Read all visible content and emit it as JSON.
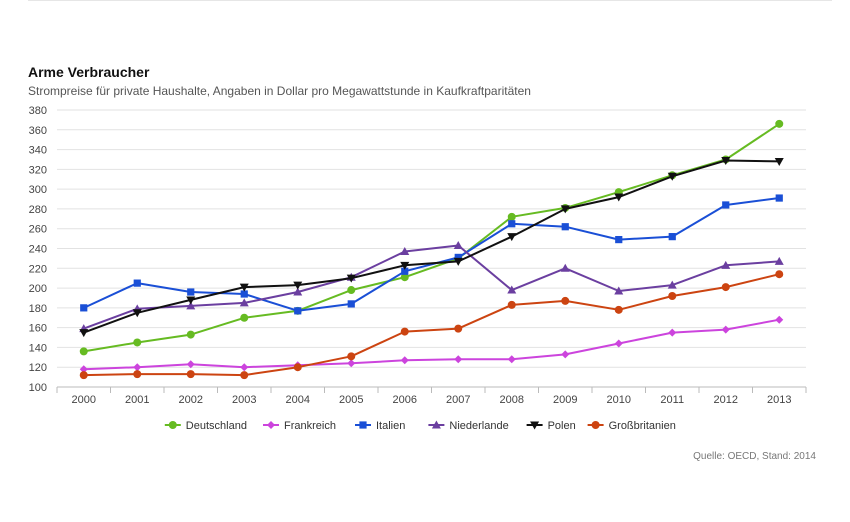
{
  "title": "Arme Verbraucher",
  "subtitle": "Strompreise für private Haushalte, Angaben in Dollar pro Megawattstunde in Kaufkraftparitäten",
  "source": "Quelle: OECD, Stand: 2014",
  "chart_data": {
    "type": "line",
    "title": "Arme Verbraucher",
    "subtitle": "Strompreise für private Haushalte, Angaben in Dollar pro Megawattstunde in Kaufkraftparitäten",
    "x": [
      "2000",
      "2001",
      "2002",
      "2003",
      "2004",
      "2005",
      "2006",
      "2007",
      "2008",
      "2009",
      "2010",
      "2011",
      "2012",
      "2013"
    ],
    "ylim": [
      100,
      380
    ],
    "yticks": [
      100,
      120,
      140,
      160,
      180,
      200,
      220,
      240,
      260,
      280,
      300,
      320,
      340,
      360,
      380
    ],
    "grid": true,
    "legend_position": "bottom",
    "series": [
      {
        "name": "Deutschland",
        "color": "#66bb22",
        "marker": "circle",
        "values": [
          136,
          145,
          153,
          170,
          177,
          198,
          211,
          230,
          272,
          281,
          297,
          314,
          330,
          366
        ]
      },
      {
        "name": "Frankreich",
        "color": "#cc44dd",
        "marker": "diamond",
        "values": [
          118,
          120,
          123,
          120,
          122,
          124,
          127,
          128,
          128,
          133,
          144,
          155,
          158,
          168
        ]
      },
      {
        "name": "Italien",
        "color": "#1a4fd6",
        "marker": "square",
        "values": [
          180,
          205,
          196,
          194,
          177,
          184,
          217,
          231,
          265,
          262,
          249,
          252,
          284,
          291
        ]
      },
      {
        "name": "Niederlande",
        "color": "#6b3fa0",
        "marker": "triangle-up",
        "values": [
          159,
          179,
          182,
          185,
          196,
          211,
          237,
          243,
          198,
          220,
          197,
          203,
          223,
          227
        ]
      },
      {
        "name": "Polen",
        "color": "#111111",
        "marker": "triangle-down",
        "values": [
          155,
          175,
          188,
          201,
          203,
          210,
          223,
          227,
          252,
          280,
          292,
          313,
          329,
          328
        ]
      },
      {
        "name": "Großbritanien",
        "color": "#cc4411",
        "marker": "circle",
        "values": [
          112,
          113,
          113,
          112,
          120,
          131,
          156,
          159,
          183,
          187,
          178,
          192,
          201,
          214
        ]
      }
    ]
  }
}
